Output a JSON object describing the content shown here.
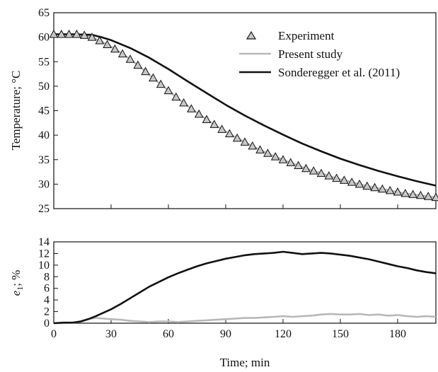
{
  "chart_data": [
    {
      "type": "line",
      "panel": "top",
      "xlabel": "",
      "ylabel": "Temperature; °C",
      "xlim": [
        0,
        200
      ],
      "ylim": [
        25,
        65
      ],
      "x_ticks": [
        0,
        30,
        60,
        90,
        120,
        150,
        180
      ],
      "y_ticks": [
        25,
        30,
        35,
        40,
        45,
        50,
        55,
        60,
        65
      ],
      "legend": {
        "position": "top-right",
        "entries": [
          "Experiment",
          "Present study",
          "Sonderegger et al. (2011)"
        ]
      },
      "series": [
        {
          "name": "Experiment",
          "marker": "triangle",
          "color": "#c8c8c8",
          "x": [
            0,
            4,
            8,
            12,
            16,
            20,
            24,
            28,
            32,
            36,
            40,
            44,
            48,
            52,
            56,
            60,
            64,
            68,
            72,
            76,
            80,
            84,
            88,
            92,
            96,
            100,
            104,
            108,
            112,
            116,
            120,
            124,
            128,
            132,
            136,
            140,
            144,
            148,
            152,
            156,
            160,
            164,
            168,
            172,
            176,
            180,
            184,
            188,
            192,
            196,
            200
          ],
          "y": [
            60.6,
            60.6,
            60.6,
            60.6,
            60.4,
            60.0,
            59.3,
            58.5,
            57.6,
            56.6,
            55.5,
            54.3,
            53.0,
            51.7,
            50.4,
            49.1,
            47.8,
            46.6,
            45.4,
            44.3,
            43.2,
            42.2,
            41.2,
            40.3,
            39.4,
            38.6,
            37.8,
            37.0,
            36.3,
            35.6,
            35.0,
            34.4,
            33.8,
            33.2,
            32.7,
            32.2,
            31.7,
            31.2,
            30.8,
            30.4,
            30.0,
            29.6,
            29.3,
            29.0,
            28.7,
            28.4,
            28.1,
            27.9,
            27.7,
            27.5,
            27.3
          ]
        },
        {
          "name": "Present study",
          "color": "#b8b8b8",
          "x": [
            0,
            4,
            8,
            12,
            16,
            20,
            24,
            28,
            32,
            36,
            40,
            44,
            48,
            52,
            56,
            60,
            64,
            68,
            72,
            76,
            80,
            84,
            88,
            92,
            96,
            100,
            104,
            108,
            112,
            116,
            120,
            124,
            128,
            132,
            136,
            140,
            144,
            148,
            152,
            156,
            160,
            164,
            168,
            172,
            176,
            180,
            184,
            188,
            192,
            196,
            200
          ],
          "y": [
            60.6,
            60.6,
            60.6,
            60.6,
            60.4,
            60.0,
            59.3,
            58.5,
            57.6,
            56.6,
            55.5,
            54.3,
            53.0,
            51.7,
            50.4,
            49.1,
            47.8,
            46.6,
            45.4,
            44.3,
            43.2,
            42.2,
            41.2,
            40.3,
            39.4,
            38.6,
            37.8,
            37.0,
            36.3,
            35.6,
            35.0,
            34.4,
            33.8,
            33.2,
            32.7,
            32.2,
            31.7,
            31.2,
            30.8,
            30.4,
            30.0,
            29.6,
            29.3,
            29.0,
            28.7,
            28.4,
            28.1,
            27.9,
            27.7,
            27.5,
            27.3
          ]
        },
        {
          "name": "Sonderegger et al. (2011)",
          "color": "#111111",
          "x": [
            0,
            10,
            20,
            25,
            30,
            40,
            50,
            60,
            70,
            80,
            90,
            100,
            110,
            120,
            130,
            140,
            150,
            160,
            170,
            180,
            190,
            200
          ],
          "y": [
            60.6,
            60.6,
            60.5,
            60.0,
            59.4,
            57.8,
            55.8,
            53.5,
            51.0,
            48.6,
            46.2,
            44.0,
            42.0,
            40.1,
            38.3,
            36.7,
            35.2,
            33.9,
            32.7,
            31.6,
            30.6,
            29.7
          ]
        }
      ]
    },
    {
      "type": "line",
      "panel": "bottom",
      "xlabel": "Time; min",
      "ylabel_main": "e",
      "ylabel_sub": "1",
      "ylabel_rest": "; %",
      "xlim": [
        0,
        200
      ],
      "ylim": [
        0,
        14
      ],
      "x_ticks": [
        0,
        30,
        60,
        90,
        120,
        150,
        180
      ],
      "y_ticks": [
        0,
        2,
        4,
        6,
        8,
        10,
        12,
        14
      ],
      "series": [
        {
          "name": "Present study",
          "color": "#b8b8b8",
          "x": [
            0,
            5,
            10,
            15,
            18,
            22,
            26,
            30,
            35,
            40,
            45,
            50,
            55,
            60,
            65,
            70,
            75,
            80,
            85,
            90,
            95,
            100,
            105,
            110,
            115,
            120,
            125,
            130,
            135,
            140,
            145,
            150,
            155,
            160,
            165,
            170,
            175,
            180,
            185,
            190,
            195,
            200
          ],
          "y": [
            0,
            0,
            0.1,
            0.3,
            0.7,
            0.9,
            0.8,
            0.7,
            0.6,
            0.4,
            0.3,
            0.2,
            0.3,
            0.3,
            0.2,
            0.3,
            0.4,
            0.5,
            0.6,
            0.7,
            0.8,
            0.9,
            0.9,
            1.0,
            1.1,
            1.2,
            1.1,
            1.2,
            1.3,
            1.5,
            1.6,
            1.5,
            1.5,
            1.6,
            1.4,
            1.5,
            1.3,
            1.4,
            1.2,
            1.1,
            1.2,
            1.1
          ]
        },
        {
          "name": "Sonderegger et al. (2011)",
          "color": "#111111",
          "x": [
            0,
            5,
            10,
            14,
            18,
            22,
            26,
            30,
            35,
            40,
            45,
            50,
            55,
            60,
            65,
            70,
            75,
            80,
            85,
            90,
            95,
            100,
            105,
            110,
            115,
            120,
            125,
            130,
            135,
            140,
            145,
            150,
            155,
            160,
            165,
            170,
            175,
            180,
            185,
            190,
            195,
            200
          ],
          "y": [
            0,
            0.1,
            0.1,
            0.3,
            0.7,
            1.2,
            1.8,
            2.4,
            3.3,
            4.3,
            5.3,
            6.3,
            7.1,
            7.9,
            8.6,
            9.2,
            9.8,
            10.3,
            10.7,
            11.1,
            11.4,
            11.7,
            11.9,
            12.0,
            12.1,
            12.3,
            12.1,
            11.9,
            12.0,
            12.1,
            12.0,
            11.8,
            11.6,
            11.3,
            11.0,
            10.6,
            10.2,
            9.8,
            9.5,
            9.1,
            8.8,
            8.6
          ]
        }
      ]
    }
  ]
}
